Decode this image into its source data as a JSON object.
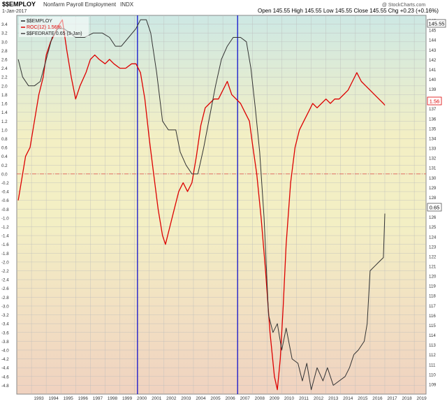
{
  "header": {
    "symbol": "$$EMPLOY",
    "description": "Nonfarm Payroll Employment",
    "exchange": "INDX",
    "date": "1-Jan-2017",
    "quote": "Open 145.55  High 145.55  Low 145.55  Close 145.55  Chg +0.23 (+0.16%)",
    "watermark": "@ StockCharts.com"
  },
  "legend": [
    {
      "label": "$$EMPLOY",
      "color": "#222222"
    },
    {
      "label": "ROC(12) 1.56%",
      "color": "#dd0000"
    },
    {
      "label": "$$FEDRATE 0.65 (3-Jan)",
      "color": "#444444"
    }
  ],
  "last_value_labels": {
    "right": "145.55",
    "roc": "1.56",
    "fedrate": "0.65"
  },
  "chart_data": {
    "type": "line",
    "x_tick_labels": [
      "1993",
      "1994",
      "1995",
      "1996",
      "1997",
      "1998",
      "1999",
      "2000",
      "2001",
      "2002",
      "2003",
      "2004",
      "2005",
      "2006",
      "2007",
      "2008",
      "2009",
      "2010",
      "2011",
      "2012",
      "2013",
      "2014",
      "2015",
      "2016",
      "2017",
      "2018",
      "2019"
    ],
    "left_axis": {
      "ylim": [
        -5.0,
        3.6
      ],
      "ticks": [
        "3.4",
        "3.2",
        "3.0",
        "2.8",
        "2.6",
        "2.4",
        "2.2",
        "2.0",
        "1.8",
        "1.6",
        "1.4",
        "1.2",
        "1.0",
        "0.8",
        "0.6",
        "0.4",
        "0.2",
        "0.0",
        "-0.2",
        "-0.4",
        "-0.6",
        "-0.8",
        "-1.0",
        "-1.2",
        "-1.4",
        "-1.6",
        "-1.8",
        "-2.0",
        "-2.2",
        "-2.4",
        "-2.6",
        "-2.8",
        "-3.0",
        "-3.2",
        "-3.4",
        "-3.6",
        "-3.8",
        "-4.0",
        "-4.2",
        "-4.4",
        "-4.6",
        "-4.8"
      ]
    },
    "right_axis": {
      "ylim": [
        108.0,
        146.5
      ],
      "ticks": [
        "146",
        "145",
        "144",
        "143",
        "142",
        "141",
        "140",
        "139",
        "138",
        "137",
        "136",
        "135",
        "134",
        "133",
        "132",
        "131",
        "130",
        "129",
        "128",
        "127",
        "126",
        "125",
        "124",
        "123",
        "122",
        "121",
        "120",
        "119",
        "118",
        "117",
        "116",
        "115",
        "114",
        "113",
        "112",
        "111",
        "110",
        "109"
      ]
    },
    "series": [
      {
        "name": "ROC(12) 1.56%",
        "color": "#dd0000",
        "axis": "left",
        "points": [
          [
            1992.1,
            -0.6
          ],
          [
            1992.3,
            -0.2
          ],
          [
            1992.6,
            0.4
          ],
          [
            1992.9,
            0.6
          ],
          [
            1993.2,
            1.2
          ],
          [
            1993.5,
            1.8
          ],
          [
            1993.8,
            2.2
          ],
          [
            1994.0,
            2.7
          ],
          [
            1994.3,
            3.0
          ],
          [
            1994.6,
            3.2
          ],
          [
            1994.9,
            3.4
          ],
          [
            1995.1,
            3.5
          ],
          [
            1995.4,
            2.8
          ],
          [
            1995.7,
            2.2
          ],
          [
            1996.0,
            1.7
          ],
          [
            1996.3,
            2.0
          ],
          [
            1996.7,
            2.3
          ],
          [
            1997.0,
            2.6
          ],
          [
            1997.3,
            2.7
          ],
          [
            1997.6,
            2.6
          ],
          [
            1998.0,
            2.5
          ],
          [
            1998.3,
            2.6
          ],
          [
            1998.6,
            2.5
          ],
          [
            1999.0,
            2.4
          ],
          [
            1999.4,
            2.4
          ],
          [
            1999.8,
            2.5
          ],
          [
            2000.1,
            2.5
          ],
          [
            2000.4,
            2.3
          ],
          [
            2000.7,
            1.7
          ],
          [
            2001.0,
            0.8
          ],
          [
            2001.3,
            0.0
          ],
          [
            2001.6,
            -0.8
          ],
          [
            2001.9,
            -1.4
          ],
          [
            2002.1,
            -1.6
          ],
          [
            2002.4,
            -1.2
          ],
          [
            2002.7,
            -0.8
          ],
          [
            2003.0,
            -0.4
          ],
          [
            2003.3,
            -0.2
          ],
          [
            2003.6,
            -0.4
          ],
          [
            2003.9,
            -0.2
          ],
          [
            2004.2,
            0.4
          ],
          [
            2004.5,
            1.1
          ],
          [
            2004.8,
            1.5
          ],
          [
            2005.1,
            1.6
          ],
          [
            2005.4,
            1.7
          ],
          [
            2005.7,
            1.7
          ],
          [
            2006.0,
            1.9
          ],
          [
            2006.3,
            2.1
          ],
          [
            2006.6,
            1.8
          ],
          [
            2006.9,
            1.7
          ],
          [
            2007.2,
            1.6
          ],
          [
            2007.5,
            1.4
          ],
          [
            2007.8,
            1.2
          ],
          [
            2008.0,
            0.7
          ],
          [
            2008.3,
            0.0
          ],
          [
            2008.6,
            -1.0
          ],
          [
            2008.9,
            -2.2
          ],
          [
            2009.2,
            -3.6
          ],
          [
            2009.5,
            -4.6
          ],
          [
            2009.7,
            -4.9
          ],
          [
            2009.9,
            -4.2
          ],
          [
            2010.1,
            -3.0
          ],
          [
            2010.3,
            -1.6
          ],
          [
            2010.6,
            -0.2
          ],
          [
            2010.9,
            0.6
          ],
          [
            2011.2,
            1.0
          ],
          [
            2011.5,
            1.2
          ],
          [
            2011.8,
            1.4
          ],
          [
            2012.1,
            1.6
          ],
          [
            2012.4,
            1.5
          ],
          [
            2012.7,
            1.6
          ],
          [
            2013.0,
            1.7
          ],
          [
            2013.3,
            1.6
          ],
          [
            2013.6,
            1.7
          ],
          [
            2013.9,
            1.7
          ],
          [
            2014.2,
            1.8
          ],
          [
            2014.5,
            1.9
          ],
          [
            2014.8,
            2.1
          ],
          [
            2015.1,
            2.3
          ],
          [
            2015.4,
            2.1
          ],
          [
            2015.7,
            2.0
          ],
          [
            2016.0,
            1.9
          ],
          [
            2016.3,
            1.8
          ],
          [
            2016.6,
            1.7
          ],
          [
            2016.9,
            1.6
          ],
          [
            2017.0,
            1.56
          ]
        ]
      },
      {
        "name": "$$FEDRATE 0.65 (3-Jan)",
        "color": "#333333",
        "axis": "left",
        "points": [
          [
            1992.1,
            2.6
          ],
          [
            1992.4,
            2.2
          ],
          [
            1992.8,
            2.0
          ],
          [
            1993.2,
            2.0
          ],
          [
            1993.6,
            2.1
          ],
          [
            1994.0,
            2.6
          ],
          [
            1994.4,
            3.1
          ],
          [
            1994.8,
            3.3
          ],
          [
            1995.2,
            3.3
          ],
          [
            1995.6,
            3.2
          ],
          [
            1996.0,
            3.1
          ],
          [
            1996.6,
            3.1
          ],
          [
            1997.2,
            3.2
          ],
          [
            1997.8,
            3.2
          ],
          [
            1998.3,
            3.1
          ],
          [
            1998.7,
            2.9
          ],
          [
            1999.1,
            2.9
          ],
          [
            1999.6,
            3.1
          ],
          [
            2000.1,
            3.3
          ],
          [
            2000.4,
            3.5
          ],
          [
            2000.8,
            3.5
          ],
          [
            2001.1,
            3.2
          ],
          [
            2001.5,
            2.3
          ],
          [
            2001.9,
            1.2
          ],
          [
            2002.3,
            1.0
          ],
          [
            2002.8,
            1.0
          ],
          [
            2003.1,
            0.5
          ],
          [
            2003.5,
            0.2
          ],
          [
            2003.9,
            0.0
          ],
          [
            2004.3,
            0.0
          ],
          [
            2004.7,
            0.6
          ],
          [
            2005.1,
            1.3
          ],
          [
            2005.5,
            2.0
          ],
          [
            2005.9,
            2.6
          ],
          [
            2006.3,
            2.9
          ],
          [
            2006.7,
            3.1
          ],
          [
            2007.2,
            3.1
          ],
          [
            2007.6,
            3.0
          ],
          [
            2007.9,
            2.4
          ],
          [
            2008.2,
            1.5
          ],
          [
            2008.5,
            0.5
          ],
          [
            2008.8,
            -1.0
          ],
          [
            2009.1,
            -3.2
          ],
          [
            2009.4,
            -3.6
          ],
          [
            2009.7,
            -3.4
          ],
          [
            2010.0,
            -4.0
          ],
          [
            2010.3,
            -3.5
          ],
          [
            2010.7,
            -4.2
          ],
          [
            2011.1,
            -4.3
          ],
          [
            2011.4,
            -4.7
          ],
          [
            2011.7,
            -4.3
          ],
          [
            2012.0,
            -4.9
          ],
          [
            2012.4,
            -4.4
          ],
          [
            2012.8,
            -4.7
          ],
          [
            2013.1,
            -4.4
          ],
          [
            2013.5,
            -4.8
          ],
          [
            2013.9,
            -4.7
          ],
          [
            2014.3,
            -4.6
          ],
          [
            2014.6,
            -4.4
          ],
          [
            2014.9,
            -4.1
          ],
          [
            2015.2,
            -4.0
          ],
          [
            2015.6,
            -3.8
          ],
          [
            2015.8,
            -3.4
          ],
          [
            2016.0,
            -2.2
          ],
          [
            2016.3,
            -2.1
          ],
          [
            2016.6,
            -2.0
          ],
          [
            2016.9,
            -1.9
          ],
          [
            2017.0,
            -0.9
          ]
        ]
      }
    ],
    "reference_line": {
      "y": 0.0,
      "color": "#dd4444",
      "style": "dash-dot"
    },
    "vertical_markers": [
      {
        "x": 2000.2,
        "color": "#0000cc"
      },
      {
        "x": 2007.0,
        "color": "#0000cc"
      }
    ],
    "grid": true,
    "background": {
      "top": "#cde8e4",
      "middle": "#f3efc4",
      "bottom": "#f0d2c0"
    }
  }
}
